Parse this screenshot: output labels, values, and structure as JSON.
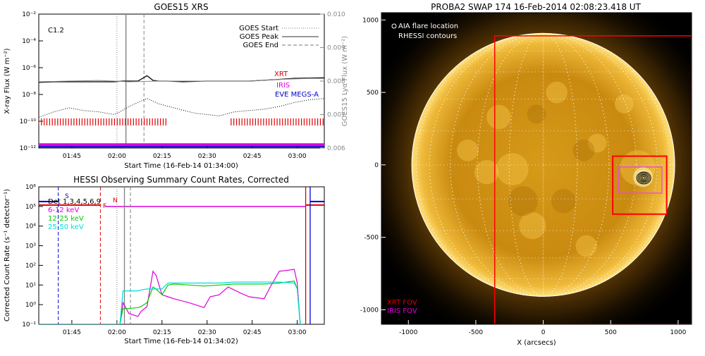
{
  "chart_data": [
    {
      "type": "line",
      "title": "GOES15 XRS",
      "xlabel": "Start Time (16-Feb-14 01:34:00)",
      "ylabel": "X-ray Flux (W m⁻²)",
      "ylabel_right": "GOES15 Lyα Flux (W m⁻²)",
      "x_ticks": [
        "01:45",
        "02:00",
        "02:15",
        "02:30",
        "02:45",
        "03:00"
      ],
      "x_tick_minutes": [
        11,
        26,
        41,
        56,
        71,
        86
      ],
      "xlim_minutes": [
        0,
        95
      ],
      "y_scale": "log",
      "ylim_exp": [
        -12,
        -2
      ],
      "y_ticks": [
        "10⁻¹²",
        "10⁻¹⁰",
        "10⁻⁸",
        "10⁻⁶",
        "10⁻⁴",
        "10⁻²"
      ],
      "y_right_ticks": [
        "0.006",
        "0.007",
        "0.008",
        "0.009",
        "0.010"
      ],
      "y_right_lim": [
        0.006,
        0.01
      ],
      "class_label": "C1.2",
      "legend": [
        {
          "label": "GOES Start",
          "style": "dotted"
        },
        {
          "label": "GOES Peak",
          "style": "solid"
        },
        {
          "label": "GOES End",
          "style": "dashed"
        }
      ],
      "instrument_labels": [
        {
          "label": "XRT",
          "color": "#dd0000"
        },
        {
          "label": "IRIS",
          "color": "#dd00dd"
        },
        {
          "label": "EVE MEGS-A",
          "color": "#0000cc"
        }
      ],
      "event_lines_minutes": {
        "start": 26,
        "peak": 29,
        "end": 35
      },
      "series": [
        {
          "style": "black-solid",
          "x": [
            0,
            5,
            10,
            15,
            20,
            25,
            28,
            33,
            36,
            38,
            40,
            43,
            48,
            55,
            62,
            70,
            78,
            85,
            95
          ],
          "y": [
            -7.1,
            -7.05,
            -7.05,
            -7.05,
            -7.05,
            -7.05,
            -7.0,
            -7.0,
            -6.6,
            -6.95,
            -7.0,
            -7.0,
            -7.05,
            -7.0,
            -7.0,
            -7.0,
            -6.9,
            -6.8,
            -6.75
          ]
        },
        {
          "style": "gray-lya",
          "x": [
            0,
            10,
            20,
            30,
            40,
            50,
            60,
            70,
            80,
            90,
            95
          ],
          "y": [
            0.00798,
            0.008,
            0.00802,
            0.00798,
            0.008,
            0.008,
            0.008,
            0.008,
            0.00805,
            0.00808,
            0.00808
          ]
        },
        {
          "style": "black-dotted",
          "x": [
            0,
            5,
            10,
            15,
            20,
            25,
            27,
            30,
            33,
            36,
            38,
            40,
            45,
            52,
            60,
            65,
            70,
            75,
            80,
            85,
            90,
            95
          ],
          "y": [
            -9.7,
            -9.3,
            -9.0,
            -9.2,
            -9.3,
            -9.5,
            -9.3,
            -8.9,
            -8.6,
            -8.3,
            -8.5,
            -8.7,
            -9.0,
            -9.4,
            -9.6,
            -9.3,
            -9.2,
            -9.1,
            -8.9,
            -8.6,
            -8.4,
            -8.3
          ]
        }
      ],
      "xrt_coverage_minutes": [
        [
          0,
          43
        ],
        [
          64,
          95
        ]
      ]
    },
    {
      "type": "line",
      "title": "HESSI Observing Summary Count Rates, Corrected",
      "xlabel": "Start Time (16-Feb-14 01:34:02)",
      "ylabel": "Corrected Count Rate (s⁻¹ detector⁻¹)",
      "x_ticks": [
        "01:45",
        "02:00",
        "02:15",
        "02:30",
        "02:45",
        "03:00"
      ],
      "x_tick_minutes": [
        11,
        26,
        41,
        56,
        71,
        86
      ],
      "xlim_minutes": [
        0,
        95
      ],
      "y_scale": "log",
      "ylim_exp": [
        -1,
        6
      ],
      "y_ticks": [
        "10⁻¹",
        "10⁰",
        "10¹",
        "10²",
        "10³",
        "10⁴",
        "10⁵",
        "10⁶"
      ],
      "detectors_label": "Det 1,3,4,5,6,9",
      "flags": [
        "S",
        "N",
        "F"
      ],
      "series": [
        {
          "name": "6-12 keV",
          "color": "#dd00dd",
          "x": [
            0,
            27,
            28,
            30,
            33,
            34,
            36,
            38,
            39,
            41,
            43,
            45,
            50,
            55,
            57,
            60,
            63,
            67,
            70,
            75,
            77,
            80,
            83,
            85,
            86,
            87,
            88
          ],
          "y_exp": [
            -1,
            -1,
            0.1,
            -0.45,
            -0.6,
            -0.35,
            -0.1,
            1.7,
            1.5,
            0.5,
            0.4,
            0.3,
            0.1,
            -0.15,
            0.4,
            0.5,
            0.9,
            0.6,
            0.4,
            0.3,
            0.9,
            1.7,
            1.75,
            1.8,
            1.1,
            -1,
            -1
          ]
        },
        {
          "name": "12-25 keV",
          "color": "#00cc00",
          "x": [
            0,
            27,
            28,
            30,
            33,
            34,
            36,
            38,
            39,
            41,
            43,
            45,
            50,
            55,
            60,
            65,
            70,
            75,
            80,
            85,
            86,
            87,
            88
          ],
          "y_exp": [
            -1,
            -1,
            -0.2,
            -0.2,
            -0.15,
            -0.1,
            0.1,
            0.9,
            0.8,
            0.5,
            1.0,
            1.05,
            1.0,
            0.95,
            1.0,
            1.05,
            1.05,
            1.05,
            1.1,
            1.2,
            0.8,
            -1,
            -1
          ]
        },
        {
          "name": "25-50 keV",
          "color": "#00dddd",
          "x": [
            0,
            27,
            28,
            30,
            33,
            34,
            36,
            38,
            39,
            41,
            43,
            45,
            50,
            55,
            60,
            65,
            70,
            75,
            80,
            85,
            86,
            87,
            88
          ],
          "y_exp": [
            -1,
            -1,
            0.7,
            0.7,
            0.7,
            0.75,
            0.8,
            0.8,
            0.8,
            0.8,
            1.1,
            1.1,
            1.1,
            1.1,
            1.1,
            1.15,
            1.15,
            1.15,
            1.15,
            1.1,
            0.8,
            -1,
            -1
          ]
        }
      ],
      "attenuator_line_exp": 5.0,
      "vlines_minutes": [
        {
          "x": 6.5,
          "color": "#0000cc",
          "style": "dashed"
        },
        {
          "x": 20.5,
          "color": "#dd0000",
          "style": "dashed"
        },
        {
          "x": 26,
          "color": "#808080",
          "style": "dotted"
        },
        {
          "x": 28.5,
          "color": "#808080",
          "style": "solid"
        },
        {
          "x": 30.5,
          "color": "#808080",
          "style": "dashed"
        },
        {
          "x": 88.8,
          "color": "#dd0000",
          "style": "solid"
        },
        {
          "x": 90.3,
          "color": "#0000cc",
          "style": "solid"
        }
      ]
    },
    {
      "type": "image",
      "title": "PROBA2 SWAP 174 16-Feb-2014 02:08:23.418 UT",
      "xlabel": "X (arcsecs)",
      "x_ticks": [
        "-1000",
        "-500",
        "0",
        "500",
        "1000"
      ],
      "y_ticks": [
        "-1000",
        "-500",
        "0",
        "500",
        "1000"
      ],
      "legend_top": [
        {
          "label": "AIA flare location",
          "marker": "circle"
        },
        {
          "label": "RHESSI contours",
          "marker": "circle"
        }
      ],
      "legend_bottom": [
        {
          "label": "XRT FOV",
          "color": "#dd0000"
        },
        {
          "label": "IRIS FOV",
          "color": "#dd00dd"
        }
      ],
      "xlim": [
        -1200,
        1100
      ],
      "ylim": [
        -1100,
        1050
      ],
      "disk_radius_arcsec": 975,
      "xrt_fov": [
        -360,
        -1100,
        1100,
        890
      ],
      "xrt_box": [
        515,
        -340,
        915,
        60
      ],
      "iris_fov": [
        560,
        -195,
        880,
        -15
      ],
      "flare_location": [
        740,
        -85
      ]
    }
  ]
}
